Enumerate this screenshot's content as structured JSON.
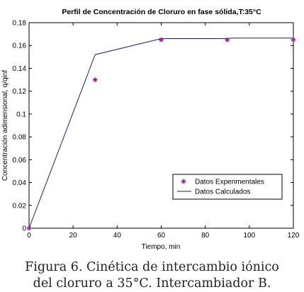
{
  "chart_data": {
    "type": "line",
    "title": "Perfil de Concentración de Cloruro en fase sólida,T:35°C",
    "xlabel": "Tiempo, min",
    "ylabel": "Concentración adimensional,  q/qinf",
    "xlim": [
      0,
      120
    ],
    "ylim": [
      0,
      0.18
    ],
    "xticks": [
      "0",
      "20",
      "40",
      "60",
      "80",
      "100",
      "120"
    ],
    "yticks": [
      "0",
      "0.02",
      "0.04",
      "0.06",
      "0.08",
      "0.1",
      "0.12",
      "0.14",
      "0.16",
      "0.18"
    ],
    "grid": false,
    "legend_position": "lower-right",
    "series": [
      {
        "name": "Datos Experimentales",
        "style": "markers",
        "marker": "star",
        "color": "#8b1a8b",
        "x": [
          0,
          30,
          60,
          90,
          120
        ],
        "y": [
          0,
          0.13,
          0.165,
          0.165,
          0.165
        ]
      },
      {
        "name": "Datos Calculados",
        "style": "line",
        "color": "#1a1a8c",
        "x": [
          0,
          30,
          60,
          90,
          92,
          120
        ],
        "y": [
          0,
          0.152,
          0.166,
          0.166,
          0.1665,
          0.1665
        ]
      }
    ]
  },
  "caption": {
    "line1": "Figura 6. Cinética de intercambio iónico",
    "line2": "del cloruro a 35°C. Intercambiador B."
  }
}
